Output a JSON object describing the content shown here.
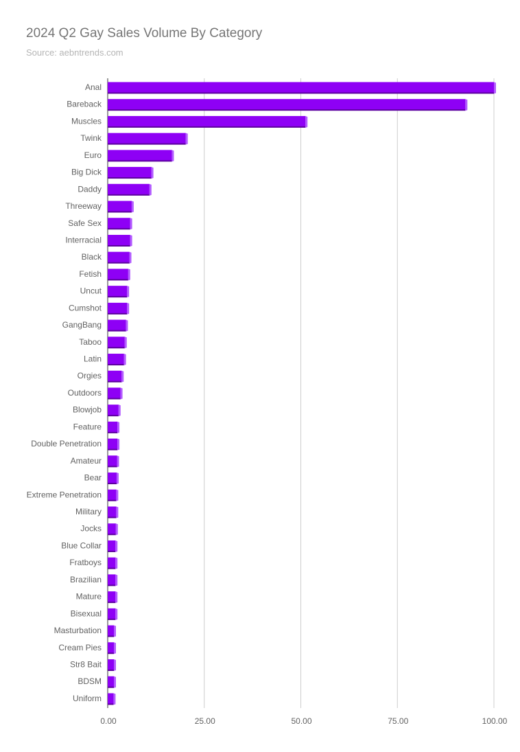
{
  "chart_data": {
    "type": "bar",
    "orientation": "horizontal",
    "style": "3d",
    "title": "2024 Q2 Gay Sales Volume By Category",
    "subtitle": "Source: aebntrends.com",
    "color": "#8e00f5",
    "xlim": [
      0,
      100
    ],
    "xticks": [
      "0.00",
      "25.00",
      "50.00",
      "75.00",
      "100.00"
    ],
    "grid": "vertical",
    "categories": [
      "Anal",
      "Bareback",
      "Muscles",
      "Twink",
      "Euro",
      "Big Dick",
      "Daddy",
      "Threeway",
      "Safe Sex",
      "Interracial",
      "Black",
      "Fetish",
      "Uncut",
      "Cumshot",
      "GangBang",
      "Taboo",
      "Latin",
      "Orgies",
      "Outdoors",
      "Blowjob",
      "Feature",
      "Double Penetration",
      "Amateur",
      "Bear",
      "Extreme Penetration",
      "Military",
      "Jocks",
      "Blue Collar",
      "Fratboys",
      "Brazilian",
      "Mature",
      "Bisexual",
      "Masturbation",
      "Cream Pies",
      "Str8 Bait",
      "BDSM",
      "Uniform"
    ],
    "values": [
      100,
      92.6,
      51.2,
      20.2,
      16.6,
      11.3,
      10.8,
      6.2,
      5.8,
      5.8,
      5.6,
      5.3,
      5.0,
      5.0,
      4.7,
      4.4,
      4.2,
      3.6,
      3.3,
      2.8,
      2.5,
      2.5,
      2.4,
      2.3,
      2.2,
      2.2,
      2.1,
      2.0,
      2.0,
      2.0,
      2.0,
      2.0,
      1.6,
      1.6,
      1.6,
      1.6,
      1.5
    ]
  }
}
